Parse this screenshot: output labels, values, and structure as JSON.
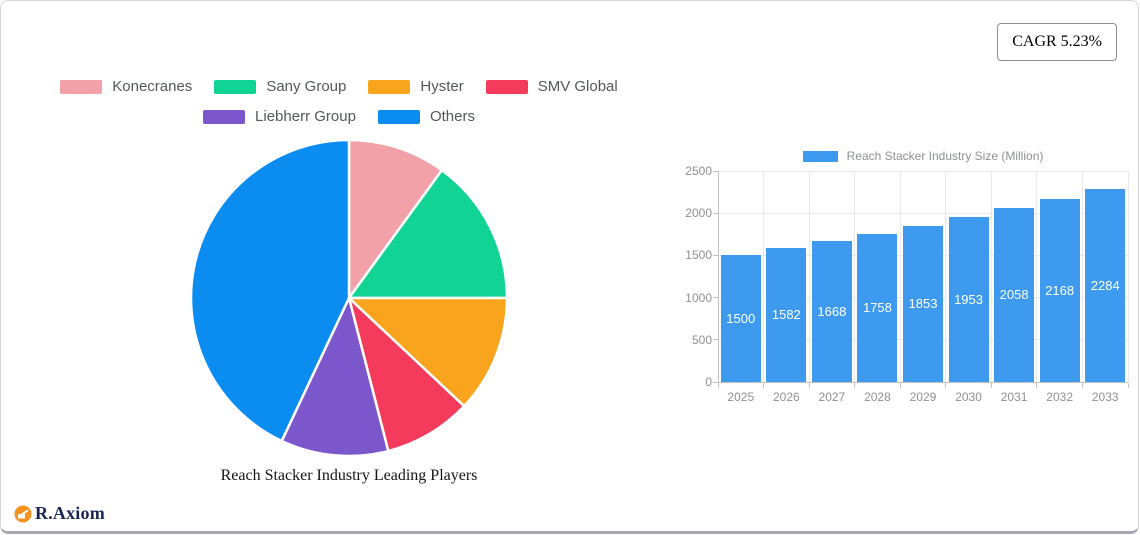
{
  "card": {
    "cagr_badge": "CAGR 5.23%"
  },
  "logo": {
    "text": "R.Axiom",
    "icon": "pen-chart-icon",
    "icon_color": "#F5921E",
    "text_color": "#1B2653"
  },
  "pie_section": {
    "title": "Reach Stacker Industry Leading Players"
  },
  "bar_section": {
    "legend_label": "Reach Stacker Industry Size (Million)",
    "bar_color": "#3D9AEE"
  },
  "chart_data": [
    {
      "type": "pie",
      "title": "Reach Stacker Industry Leading Players",
      "labels": [
        "Konecranes",
        "Sany Group",
        "Hyster",
        "SMV Global",
        "Liebherr Group",
        "Others"
      ],
      "values": [
        10,
        15,
        12,
        9,
        11,
        43
      ],
      "colors": [
        "#F2A1A8",
        "#10D394",
        "#F8A41D",
        "#F43B5C",
        "#7C57CB",
        "#0B8CF1"
      ],
      "start_angle_deg": -90,
      "direction": "clockwise",
      "legend_position": "top",
      "legend_rows": [
        4,
        2
      ]
    },
    {
      "type": "bar",
      "series": [
        {
          "name": "Reach Stacker Industry Size (Million)",
          "values": [
            1500,
            1582,
            1668,
            1758,
            1853,
            1953,
            2058,
            2168,
            2284
          ]
        }
      ],
      "categories": [
        "2025",
        "2026",
        "2027",
        "2028",
        "2029",
        "2030",
        "2031",
        "2032",
        "2033"
      ],
      "ylim": [
        0,
        2500
      ],
      "yticks": [
        0,
        500,
        1000,
        1500,
        2000,
        2500
      ],
      "grid": true,
      "legend_position": "top",
      "bar_color": "#3D9AEE",
      "value_labels": "inside-center-white"
    }
  ]
}
